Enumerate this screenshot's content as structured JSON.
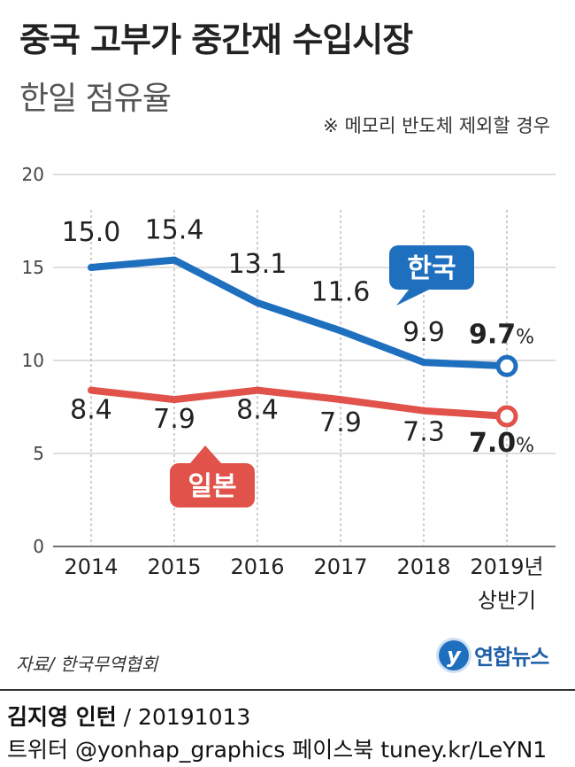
{
  "header": {
    "title": "중국 고부가 중간재 수입시장",
    "subtitle": "한일 점유율",
    "note": "※ 메모리 반도체 제외할 경우"
  },
  "chart_data": {
    "type": "line",
    "x": [
      "2014",
      "2015",
      "2016",
      "2017",
      "2018",
      "2019년 상반기"
    ],
    "x_tick_lines": [
      [
        "2014"
      ],
      [
        "2015"
      ],
      [
        "2016"
      ],
      [
        "2017"
      ],
      [
        "2018"
      ],
      [
        "2019년",
        "상반기"
      ]
    ],
    "ylim": [
      0,
      20
    ],
    "yticks": [
      "0",
      "5",
      "10",
      "15",
      "20"
    ],
    "grid": true,
    "series": [
      {
        "name": "한국",
        "color": "#1f6fbf",
        "values": [
          15.0,
          15.4,
          13.1,
          11.6,
          9.9,
          9.7
        ],
        "labels": [
          "15.0",
          "15.4",
          "13.1",
          "11.6",
          "9.9",
          "9.7"
        ],
        "last_suffix": "%"
      },
      {
        "name": "일본",
        "color": "#e0524a",
        "values": [
          8.4,
          7.9,
          8.4,
          7.9,
          7.3,
          7.0
        ],
        "labels": [
          "8.4",
          "7.9",
          "8.4",
          "7.9",
          "7.3",
          "7.0"
        ],
        "last_suffix": "%"
      }
    ]
  },
  "footer": {
    "source": "자료/ 한국무역협회",
    "logo_mark": "y",
    "logo_text": "연합뉴스",
    "author": "김지영 인턴",
    "date_sep": " / ",
    "date": "20191013",
    "social": "트위터 @yonhap_graphics  페이스북 tuney.kr/LeYN1"
  }
}
